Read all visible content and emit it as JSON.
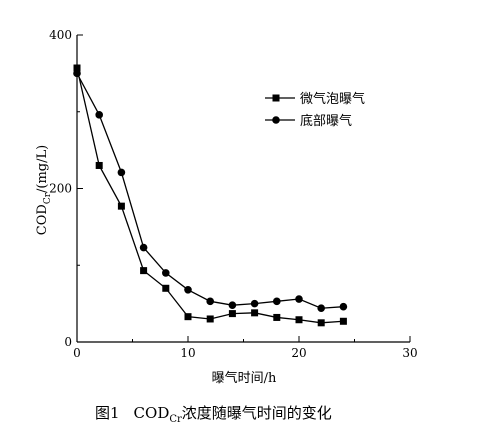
{
  "chart_data": {
    "type": "line",
    "x_ticks": [
      0,
      10,
      20,
      30
    ],
    "y_ticks": [
      0,
      200,
      400
    ],
    "xlim": [
      0,
      30
    ],
    "ylim": [
      0,
      400
    ],
    "grid": false,
    "legend_position": "top-right",
    "xlabel": "曝气时间/h",
    "ylabel_main": "COD",
    "ylabel_sub": "Cr",
    "ylabel_unit": "/(mg/L)",
    "caption_prefix": "图1",
    "caption_cod": "COD",
    "caption_sub": "Cr",
    "caption_rest": "浓度随曝气时间的变化",
    "series": [
      {
        "name": "微气泡曝气",
        "marker": "square",
        "x": [
          0,
          2,
          4,
          6,
          8,
          10,
          12,
          14,
          16,
          18,
          20,
          22,
          24
        ],
        "values": [
          357,
          230,
          177,
          93,
          70,
          33,
          30,
          37,
          38,
          32,
          29,
          25,
          27
        ]
      },
      {
        "name": "底部曝气",
        "marker": "circle",
        "x": [
          0,
          2,
          4,
          6,
          8,
          10,
          12,
          14,
          16,
          18,
          20,
          22,
          24
        ],
        "values": [
          350,
          296,
          221,
          123,
          90,
          68,
          53,
          48,
          50,
          53,
          56,
          44,
          46
        ]
      }
    ]
  }
}
